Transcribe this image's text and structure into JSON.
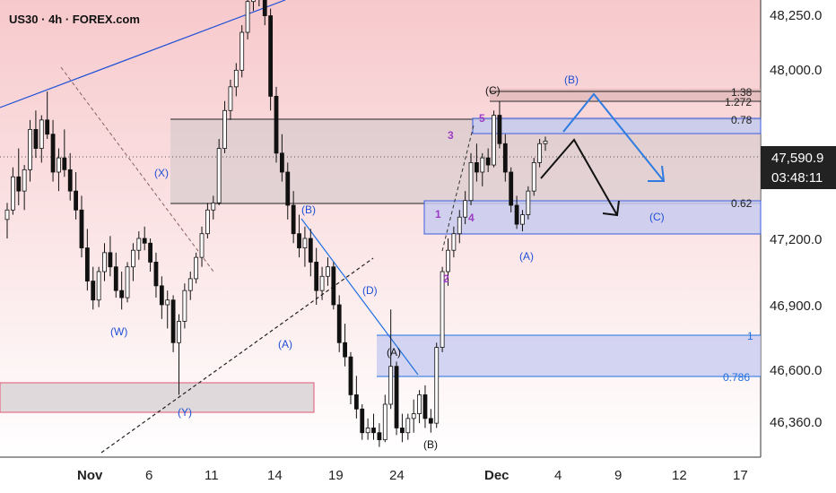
{
  "title": "US30 · 4h · FOREX.com",
  "chart_data": {
    "type": "candlestick",
    "x_tick_labels": [
      "Nov",
      "6",
      "11",
      "14",
      "19",
      "24",
      "Dec",
      "4",
      "9",
      "12",
      "17"
    ],
    "y_tick_labels": [
      "48,250.0",
      "48,000.0",
      "47,200.0",
      "46,900.0",
      "46,600.0",
      "46,360.0"
    ],
    "price_label": "47,590.9",
    "countdown_label": "03:48:11",
    "fib_labels": [
      "1.38",
      "1.272",
      "0.78",
      "0.62",
      "1",
      "0.786"
    ],
    "wave_labels": [
      "(W)",
      "(X)",
      "(Y)",
      "(B)",
      "(A)",
      "(D)",
      "(A)",
      "(B)",
      "(C)",
      "(A)",
      "(B)",
      "(C)",
      "1",
      "2",
      "3",
      "4",
      "5"
    ],
    "candles": [
      [
        47260,
        47330,
        47180,
        47300
      ],
      [
        47300,
        47480,
        47280,
        47440
      ],
      [
        47440,
        47560,
        47320,
        47380
      ],
      [
        47380,
        47490,
        47300,
        47470
      ],
      [
        47470,
        47680,
        47420,
        47640
      ],
      [
        47640,
        47720,
        47520,
        47560
      ],
      [
        47560,
        47700,
        47500,
        47680
      ],
      [
        47680,
        47800,
        47600,
        47620
      ],
      [
        47620,
        47680,
        47420,
        47460
      ],
      [
        47460,
        47560,
        47380,
        47520
      ],
      [
        47520,
        47640,
        47440,
        47470
      ],
      [
        47470,
        47540,
        47340,
        47380
      ],
      [
        47380,
        47460,
        47260,
        47300
      ],
      [
        47300,
        47360,
        47100,
        47140
      ],
      [
        47140,
        47220,
        46960,
        47000
      ],
      [
        47000,
        47060,
        46880,
        46920
      ],
      [
        46920,
        47060,
        46890,
        47040
      ],
      [
        47040,
        47160,
        47000,
        47120
      ],
      [
        47120,
        47190,
        47020,
        47060
      ],
      [
        47060,
        47120,
        46930,
        46960
      ],
      [
        46960,
        47040,
        46880,
        46930
      ],
      [
        46930,
        47080,
        46910,
        47060
      ],
      [
        47060,
        47160,
        47000,
        47130
      ],
      [
        47130,
        47210,
        47090,
        47180
      ],
      [
        47180,
        47230,
        47130,
        47160
      ],
      [
        47160,
        47180,
        47040,
        47080
      ],
      [
        47080,
        47120,
        46930,
        46980
      ],
      [
        46980,
        47020,
        46840,
        46900
      ],
      [
        46900,
        46960,
        46800,
        46920
      ],
      [
        46920,
        46940,
        46700,
        46740
      ],
      [
        46740,
        46860,
        46520,
        46830
      ],
      [
        46830,
        46990,
        46800,
        46960
      ],
      [
        46960,
        47040,
        46920,
        47010
      ],
      [
        47010,
        47120,
        46990,
        47100
      ],
      [
        47100,
        47230,
        47060,
        47200
      ],
      [
        47200,
        47330,
        47180,
        47300
      ],
      [
        47300,
        47360,
        47260,
        47330
      ],
      [
        47330,
        47600,
        47320,
        47560
      ],
      [
        47560,
        47760,
        47540,
        47720
      ],
      [
        47720,
        47850,
        47680,
        47820
      ],
      [
        47820,
        47920,
        47780,
        47890
      ],
      [
        47890,
        48080,
        47860,
        48050
      ],
      [
        48050,
        48200,
        48020,
        48180
      ],
      [
        48180,
        48280,
        48140,
        48260
      ],
      [
        48260,
        48300,
        48160,
        48200
      ],
      [
        48200,
        48240,
        48080,
        48120
      ],
      [
        48120,
        48150,
        47720,
        47780
      ],
      [
        47780,
        47820,
        47500,
        47540
      ],
      [
        47540,
        47620,
        47420,
        47460
      ],
      [
        47460,
        47500,
        47260,
        47320
      ],
      [
        47320,
        47380,
        47160,
        47200
      ],
      [
        47200,
        47280,
        47100,
        47140
      ],
      [
        47140,
        47230,
        47060,
        47180
      ],
      [
        47180,
        47220,
        47020,
        47080
      ],
      [
        47080,
        47140,
        46900,
        46960
      ],
      [
        46960,
        47060,
        46920,
        47020
      ],
      [
        47020,
        47100,
        46980,
        47060
      ],
      [
        47060,
        47080,
        46880,
        46900
      ],
      [
        46900,
        46940,
        46700,
        46740
      ],
      [
        46740,
        46820,
        46640,
        46680
      ],
      [
        46680,
        46700,
        46480,
        46520
      ],
      [
        46520,
        46600,
        46420,
        46460
      ],
      [
        46460,
        46480,
        46330,
        46360
      ],
      [
        46360,
        46420,
        46330,
        46380
      ],
      [
        46380,
        46440,
        46330,
        46360
      ],
      [
        46360,
        46400,
        46300,
        46330
      ],
      [
        46330,
        46520,
        46320,
        46480
      ],
      [
        46480,
        46880,
        46460,
        46640
      ],
      [
        46640,
        46660,
        46350,
        46380
      ],
      [
        46380,
        46440,
        46320,
        46360
      ],
      [
        46360,
        46440,
        46330,
        46420
      ],
      [
        46420,
        46500,
        46360,
        46440
      ],
      [
        46440,
        46540,
        46400,
        46520
      ],
      [
        46520,
        46560,
        46380,
        46420
      ],
      [
        46420,
        46460,
        46360,
        46400
      ],
      [
        46400,
        46740,
        46380,
        46720
      ],
      [
        46720,
        47060,
        46700,
        47040
      ],
      [
        47040,
        47180,
        46980,
        47130
      ],
      [
        47130,
        47230,
        47100,
        47200
      ],
      [
        47200,
        47300,
        47160,
        47270
      ],
      [
        47270,
        47380,
        47240,
        47340
      ],
      [
        47340,
        47540,
        47320,
        47500
      ],
      [
        47500,
        47580,
        47420,
        47460
      ],
      [
        47460,
        47540,
        47400,
        47520
      ],
      [
        47520,
        47560,
        47460,
        47490
      ],
      [
        47490,
        47720,
        47480,
        47700
      ],
      [
        47700,
        47760,
        47560,
        47580
      ],
      [
        47580,
        47620,
        47420,
        47460
      ],
      [
        47460,
        47480,
        47290,
        47320
      ],
      [
        47320,
        47360,
        47220,
        47240
      ],
      [
        47240,
        47300,
        47210,
        47280
      ],
      [
        47280,
        47400,
        47260,
        47380
      ],
      [
        47380,
        47520,
        47360,
        47500
      ],
      [
        47500,
        47600,
        47480,
        47580
      ],
      [
        47580,
        47610,
        47550,
        47591
      ]
    ]
  }
}
